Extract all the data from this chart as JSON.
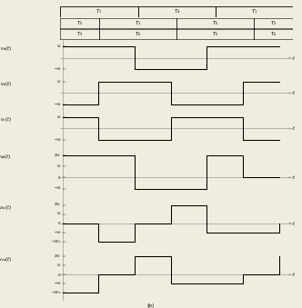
{
  "title": "(b)",
  "Vs": 1,
  "bg_color": "#f0ede0",
  "line_color": "#000000",
  "axis_color": "#999999",
  "font_size": 4.2,
  "timing_rows": [
    {
      "labels": [
        "1",
        "4",
        "1"
      ],
      "edges": [
        0.0,
        0.333,
        0.667,
        1.0
      ],
      "boxed": true
    },
    {
      "labels": [
        "5",
        "2",
        "5",
        "2"
      ],
      "edges": [
        0.0,
        0.167,
        0.5,
        0.833,
        1.0
      ],
      "boxed": false
    },
    {
      "labels": [
        "3",
        "6",
        "5",
        "6"
      ],
      "edges": [
        0.0,
        0.167,
        0.5,
        0.833,
        1.0
      ],
      "boxed": false
    }
  ],
  "waveforms": [
    {
      "label": "v_a(t)",
      "subscript": "a",
      "three_level": false,
      "yticks": [
        1,
        -1
      ],
      "ylbls": [
        "$V_s$",
        "$-V_s$"
      ],
      "ymin": -1.55,
      "ymax": 1.55,
      "steps": [
        0.0,
        0.333,
        0.667,
        1.0
      ],
      "values": [
        1,
        -1,
        1,
        1
      ]
    },
    {
      "label": "v_b(t)",
      "subscript": "b",
      "three_level": false,
      "yticks": [
        1,
        -1
      ],
      "ylbls": [
        "$V_s$",
        "$-V_s$"
      ],
      "ymin": -1.55,
      "ymax": 1.55,
      "steps": [
        0.0,
        0.167,
        0.5,
        0.833,
        1.0
      ],
      "values": [
        -1,
        1,
        -1,
        1,
        1
      ]
    },
    {
      "label": "v_c(t)",
      "subscript": "c",
      "three_level": false,
      "yticks": [
        1,
        -1
      ],
      "ylbls": [
        "$V_s$",
        "$-V_s$"
      ],
      "ymin": -1.55,
      "ymax": 1.55,
      "steps": [
        0.0,
        0.167,
        0.5,
        0.833,
        1.0
      ],
      "values": [
        1,
        -1,
        1,
        -1,
        -1
      ]
    },
    {
      "label": "v_{ab}(t)",
      "subscript": "ab",
      "three_level": true,
      "yticks": [
        2,
        1,
        0,
        -1
      ],
      "ylbls": [
        "$2V_s$",
        "$V_s$",
        "$0$",
        "$-V_s$"
      ],
      "ymin": -1.8,
      "ymax": 2.8,
      "steps": [
        0.0,
        0.167,
        0.333,
        0.5,
        0.667,
        0.833,
        1.0
      ],
      "values": [
        2,
        2,
        -1,
        -1,
        2,
        0,
        0
      ]
    },
    {
      "label": "v_{bc}(t)",
      "subscript": "bc",
      "three_level": true,
      "yticks": [
        2,
        1,
        0,
        -1,
        -2
      ],
      "ylbls": [
        "$2V_s$",
        "$V_s$",
        "$0$",
        "$-V_s$",
        "$-2V_s$"
      ],
      "ymin": -2.8,
      "ymax": 2.8,
      "steps": [
        0.0,
        0.167,
        0.333,
        0.5,
        0.667,
        0.833,
        1.0
      ],
      "values": [
        0,
        -2,
        0,
        2,
        -1,
        -1,
        0
      ]
    },
    {
      "label": "v_{ca}(t)",
      "subscript": "ca",
      "three_level": true,
      "yticks": [
        2,
        1,
        0,
        -1,
        -2
      ],
      "ylbls": [
        "$2V_s$",
        "$V_s$",
        "$0$",
        "$-V_s$",
        "$-2V_s$"
      ],
      "ymin": -2.8,
      "ymax": 2.8,
      "steps": [
        0.0,
        0.167,
        0.333,
        0.5,
        0.667,
        0.833,
        1.0
      ],
      "values": [
        -2,
        0,
        2,
        -1,
        -1,
        0,
        2
      ]
    }
  ]
}
